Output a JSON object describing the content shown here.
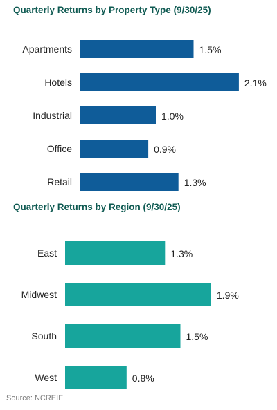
{
  "chart_data": [
    {
      "type": "bar",
      "orientation": "horizontal",
      "title": "Quarterly Returns by Property Type (9/30/25)",
      "categories": [
        "Apartments",
        "Hotels",
        "Industrial",
        "Office",
        "Retail"
      ],
      "values": [
        1.5,
        2.1,
        1.0,
        0.9,
        1.3
      ],
      "value_labels": [
        "1.5%",
        "2.1%",
        "1.0%",
        "0.9%",
        "1.3%"
      ],
      "unit": "%",
      "bar_color": "#0f5c99",
      "grid": false,
      "legend": "none"
    },
    {
      "type": "bar",
      "orientation": "horizontal",
      "title": "Quarterly Returns by Region (9/30/25)",
      "categories": [
        "East",
        "Midwest",
        "South",
        "West"
      ],
      "values": [
        1.3,
        1.9,
        1.5,
        0.8
      ],
      "value_labels": [
        "1.3%",
        "1.9%",
        "1.5%",
        "0.8%"
      ],
      "unit": "%",
      "bar_color": "#17a59c",
      "grid": false,
      "legend": "none"
    }
  ],
  "source": "Source: NCREIF",
  "colors": {
    "title": "#0f5a52",
    "text": "#222222",
    "source": "#7a7a7a"
  }
}
